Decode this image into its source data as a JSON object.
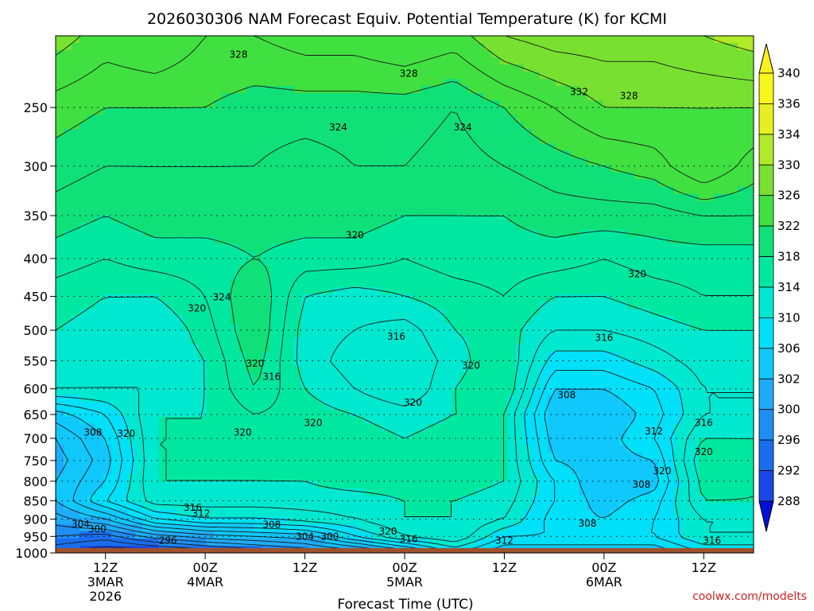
{
  "chart_data": {
    "type": "heatmap",
    "title": "2026030306 NAM Forecast Equiv. Potential Temperature (K) for KCMI",
    "xlabel": "Forecast Time (UTC)",
    "ylabel": "",
    "x_ticks": [
      {
        "hour": 6,
        "lines": [
          "12Z",
          "3MAR",
          "2026"
        ]
      },
      {
        "hour": 18,
        "lines": [
          "00Z",
          "4MAR"
        ]
      },
      {
        "hour": 30,
        "lines": [
          "12Z"
        ]
      },
      {
        "hour": 42,
        "lines": [
          "00Z",
          "5MAR"
        ]
      },
      {
        "hour": 54,
        "lines": [
          "12Z"
        ]
      },
      {
        "hour": 66,
        "lines": [
          "00Z",
          "6MAR"
        ]
      },
      {
        "hour": 78,
        "lines": [
          "12Z"
        ]
      }
    ],
    "xlim": [
      0,
      84
    ],
    "y_ticks": [
      250,
      300,
      350,
      400,
      450,
      500,
      550,
      600,
      650,
      700,
      750,
      800,
      850,
      900,
      950,
      1000
    ],
    "ylim_hpa": [
      1000,
      200
    ],
    "ground_hpa": 985,
    "colorbar": {
      "levels": [
        288,
        292,
        296,
        300,
        302,
        306,
        310,
        314,
        318,
        322,
        326,
        330,
        334,
        336,
        340
      ],
      "labels": [
        "288",
        "292",
        "296",
        "300",
        "302",
        "306",
        "310",
        "314",
        "318",
        "322",
        "326",
        "330",
        "334",
        "336",
        "340"
      ],
      "colors": [
        "#0b1fe0",
        "#1a48e8",
        "#1a6eee",
        "#1e8ef4",
        "#1eacf8",
        "#10c8fb",
        "#00e0f8",
        "#00e8d0",
        "#00e8a0",
        "#10e078",
        "#40e040",
        "#78e030",
        "#b0ea28",
        "#e6f020",
        "#f8f818"
      ],
      "extend_low_color": "#0010d8",
      "extend_high_color": "#f8f020"
    },
    "grid_values": {
      "times": [
        0,
        6,
        12,
        18,
        24,
        30,
        36,
        42,
        48,
        54,
        60,
        66,
        72,
        78,
        84
      ],
      "pressures": [
        200,
        250,
        300,
        350,
        400,
        450,
        500,
        550,
        600,
        650,
        700,
        750,
        800,
        850,
        900,
        950,
        1000
      ],
      "theta_e": [
        [
          331,
          329,
          330,
          328,
          328,
          329,
          329,
          330,
          329,
          332,
          333,
          333,
          333,
          334,
          335
        ],
        [
          327,
          326,
          326,
          326,
          325,
          325,
          325,
          325,
          324,
          326,
          328,
          330,
          330,
          330,
          330
        ],
        [
          325,
          324,
          324,
          324,
          324,
          323,
          324,
          324,
          323,
          324,
          325,
          326,
          327,
          330,
          327
        ],
        [
          323,
          322,
          323,
          323,
          323,
          323,
          323,
          322,
          322,
          322,
          323,
          323,
          323,
          324,
          324
        ],
        [
          321,
          320,
          321,
          321,
          322,
          321,
          321,
          320,
          321,
          321,
          321,
          320,
          321,
          321,
          321
        ],
        [
          319,
          318,
          318,
          320,
          324,
          318,
          317,
          318,
          319,
          320,
          318,
          318,
          319,
          320,
          320
        ],
        [
          318,
          317,
          316,
          319,
          324,
          317,
          316,
          315,
          318,
          319,
          316,
          316,
          317,
          318,
          318
        ],
        [
          317,
          316,
          316,
          318,
          323,
          317,
          315,
          314,
          317,
          320,
          313,
          313,
          315,
          317,
          317
        ],
        [
          316,
          316,
          316,
          318,
          322,
          318,
          316,
          314,
          318,
          320,
          310,
          310,
          312,
          316,
          316
        ],
        [
          309,
          312,
          318,
          318,
          320,
          319,
          318,
          317,
          318,
          318,
          308,
          308,
          311,
          316,
          316
        ],
        [
          306,
          310,
          318,
          318,
          319,
          319,
          319,
          318,
          319,
          318,
          309,
          309,
          312,
          318,
          318
        ],
        [
          305,
          309,
          318,
          318,
          318,
          319,
          319,
          319,
          319,
          318,
          310,
          309,
          310,
          320,
          319
        ],
        [
          306,
          310,
          318,
          318,
          318,
          318,
          319,
          319,
          319,
          318,
          312,
          308,
          309,
          319,
          318
        ],
        [
          306,
          312,
          317,
          317,
          317,
          317,
          317,
          318,
          318,
          317,
          312,
          309,
          311,
          318,
          318
        ],
        [
          303,
          306,
          312,
          314,
          314,
          315,
          316,
          318,
          318,
          316,
          311,
          310,
          312,
          316,
          316
        ],
        [
          300,
          299,
          303,
          305,
          306,
          307,
          312,
          316,
          318,
          312,
          312,
          312,
          312,
          316,
          316
        ],
        [
          296,
          294,
          294,
          296,
          298,
          300,
          302,
          306,
          312,
          308,
          308,
          308,
          308,
          312,
          312
        ]
      ]
    },
    "contour_labels": [
      {
        "text": "328",
        "hour": 22,
        "hpa": 212
      },
      {
        "text": "328",
        "hour": 42.5,
        "hpa": 225
      },
      {
        "text": "332",
        "hour": 63,
        "hpa": 238
      },
      {
        "text": "328",
        "hour": 69,
        "hpa": 241
      },
      {
        "text": "324",
        "hour": 34,
        "hpa": 266
      },
      {
        "text": "324",
        "hour": 49,
        "hpa": 266
      },
      {
        "text": "320",
        "hour": 36,
        "hpa": 372
      },
      {
        "text": "320",
        "hour": 70,
        "hpa": 420
      },
      {
        "text": "324",
        "hour": 20,
        "hpa": 451
      },
      {
        "text": "320",
        "hour": 17,
        "hpa": 467
      },
      {
        "text": "316",
        "hour": 41,
        "hpa": 510
      },
      {
        "text": "316",
        "hour": 66,
        "hpa": 512
      },
      {
        "text": "320",
        "hour": 24,
        "hpa": 555
      },
      {
        "text": "320",
        "hour": 50,
        "hpa": 558
      },
      {
        "text": "316",
        "hour": 26,
        "hpa": 578
      },
      {
        "text": "320",
        "hour": 43,
        "hpa": 626
      },
      {
        "text": "308",
        "hour": 61.5,
        "hpa": 612
      },
      {
        "text": "320",
        "hour": 31,
        "hpa": 667
      },
      {
        "text": "316",
        "hour": 78,
        "hpa": 667
      },
      {
        "text": "320",
        "hour": 22.5,
        "hpa": 687
      },
      {
        "text": "312",
        "hour": 72,
        "hpa": 685
      },
      {
        "text": "308",
        "hour": 4.5,
        "hpa": 687
      },
      {
        "text": "320",
        "hour": 8.5,
        "hpa": 690
      },
      {
        "text": "320",
        "hour": 78,
        "hpa": 730
      },
      {
        "text": "320",
        "hour": 73,
        "hpa": 775
      },
      {
        "text": "308",
        "hour": 70.5,
        "hpa": 808
      },
      {
        "text": "316",
        "hour": 16.5,
        "hpa": 868
      },
      {
        "text": "312",
        "hour": 17.5,
        "hpa": 885
      },
      {
        "text": "304",
        "hour": 3,
        "hpa": 915
      },
      {
        "text": "300",
        "hour": 5,
        "hpa": 928
      },
      {
        "text": "308",
        "hour": 26,
        "hpa": 916
      },
      {
        "text": "308",
        "hour": 64,
        "hpa": 913
      },
      {
        "text": "320",
        "hour": 40,
        "hpa": 935
      },
      {
        "text": "304",
        "hour": 30,
        "hpa": 950
      },
      {
        "text": "300",
        "hour": 33,
        "hpa": 950
      },
      {
        "text": "316",
        "hour": 42.5,
        "hpa": 958
      },
      {
        "text": "296",
        "hour": 13.5,
        "hpa": 962
      },
      {
        "text": "312",
        "hour": 54,
        "hpa": 962
      },
      {
        "text": "316",
        "hour": 79,
        "hpa": 962
      }
    ],
    "credit": "coolwx.com/modelts"
  }
}
